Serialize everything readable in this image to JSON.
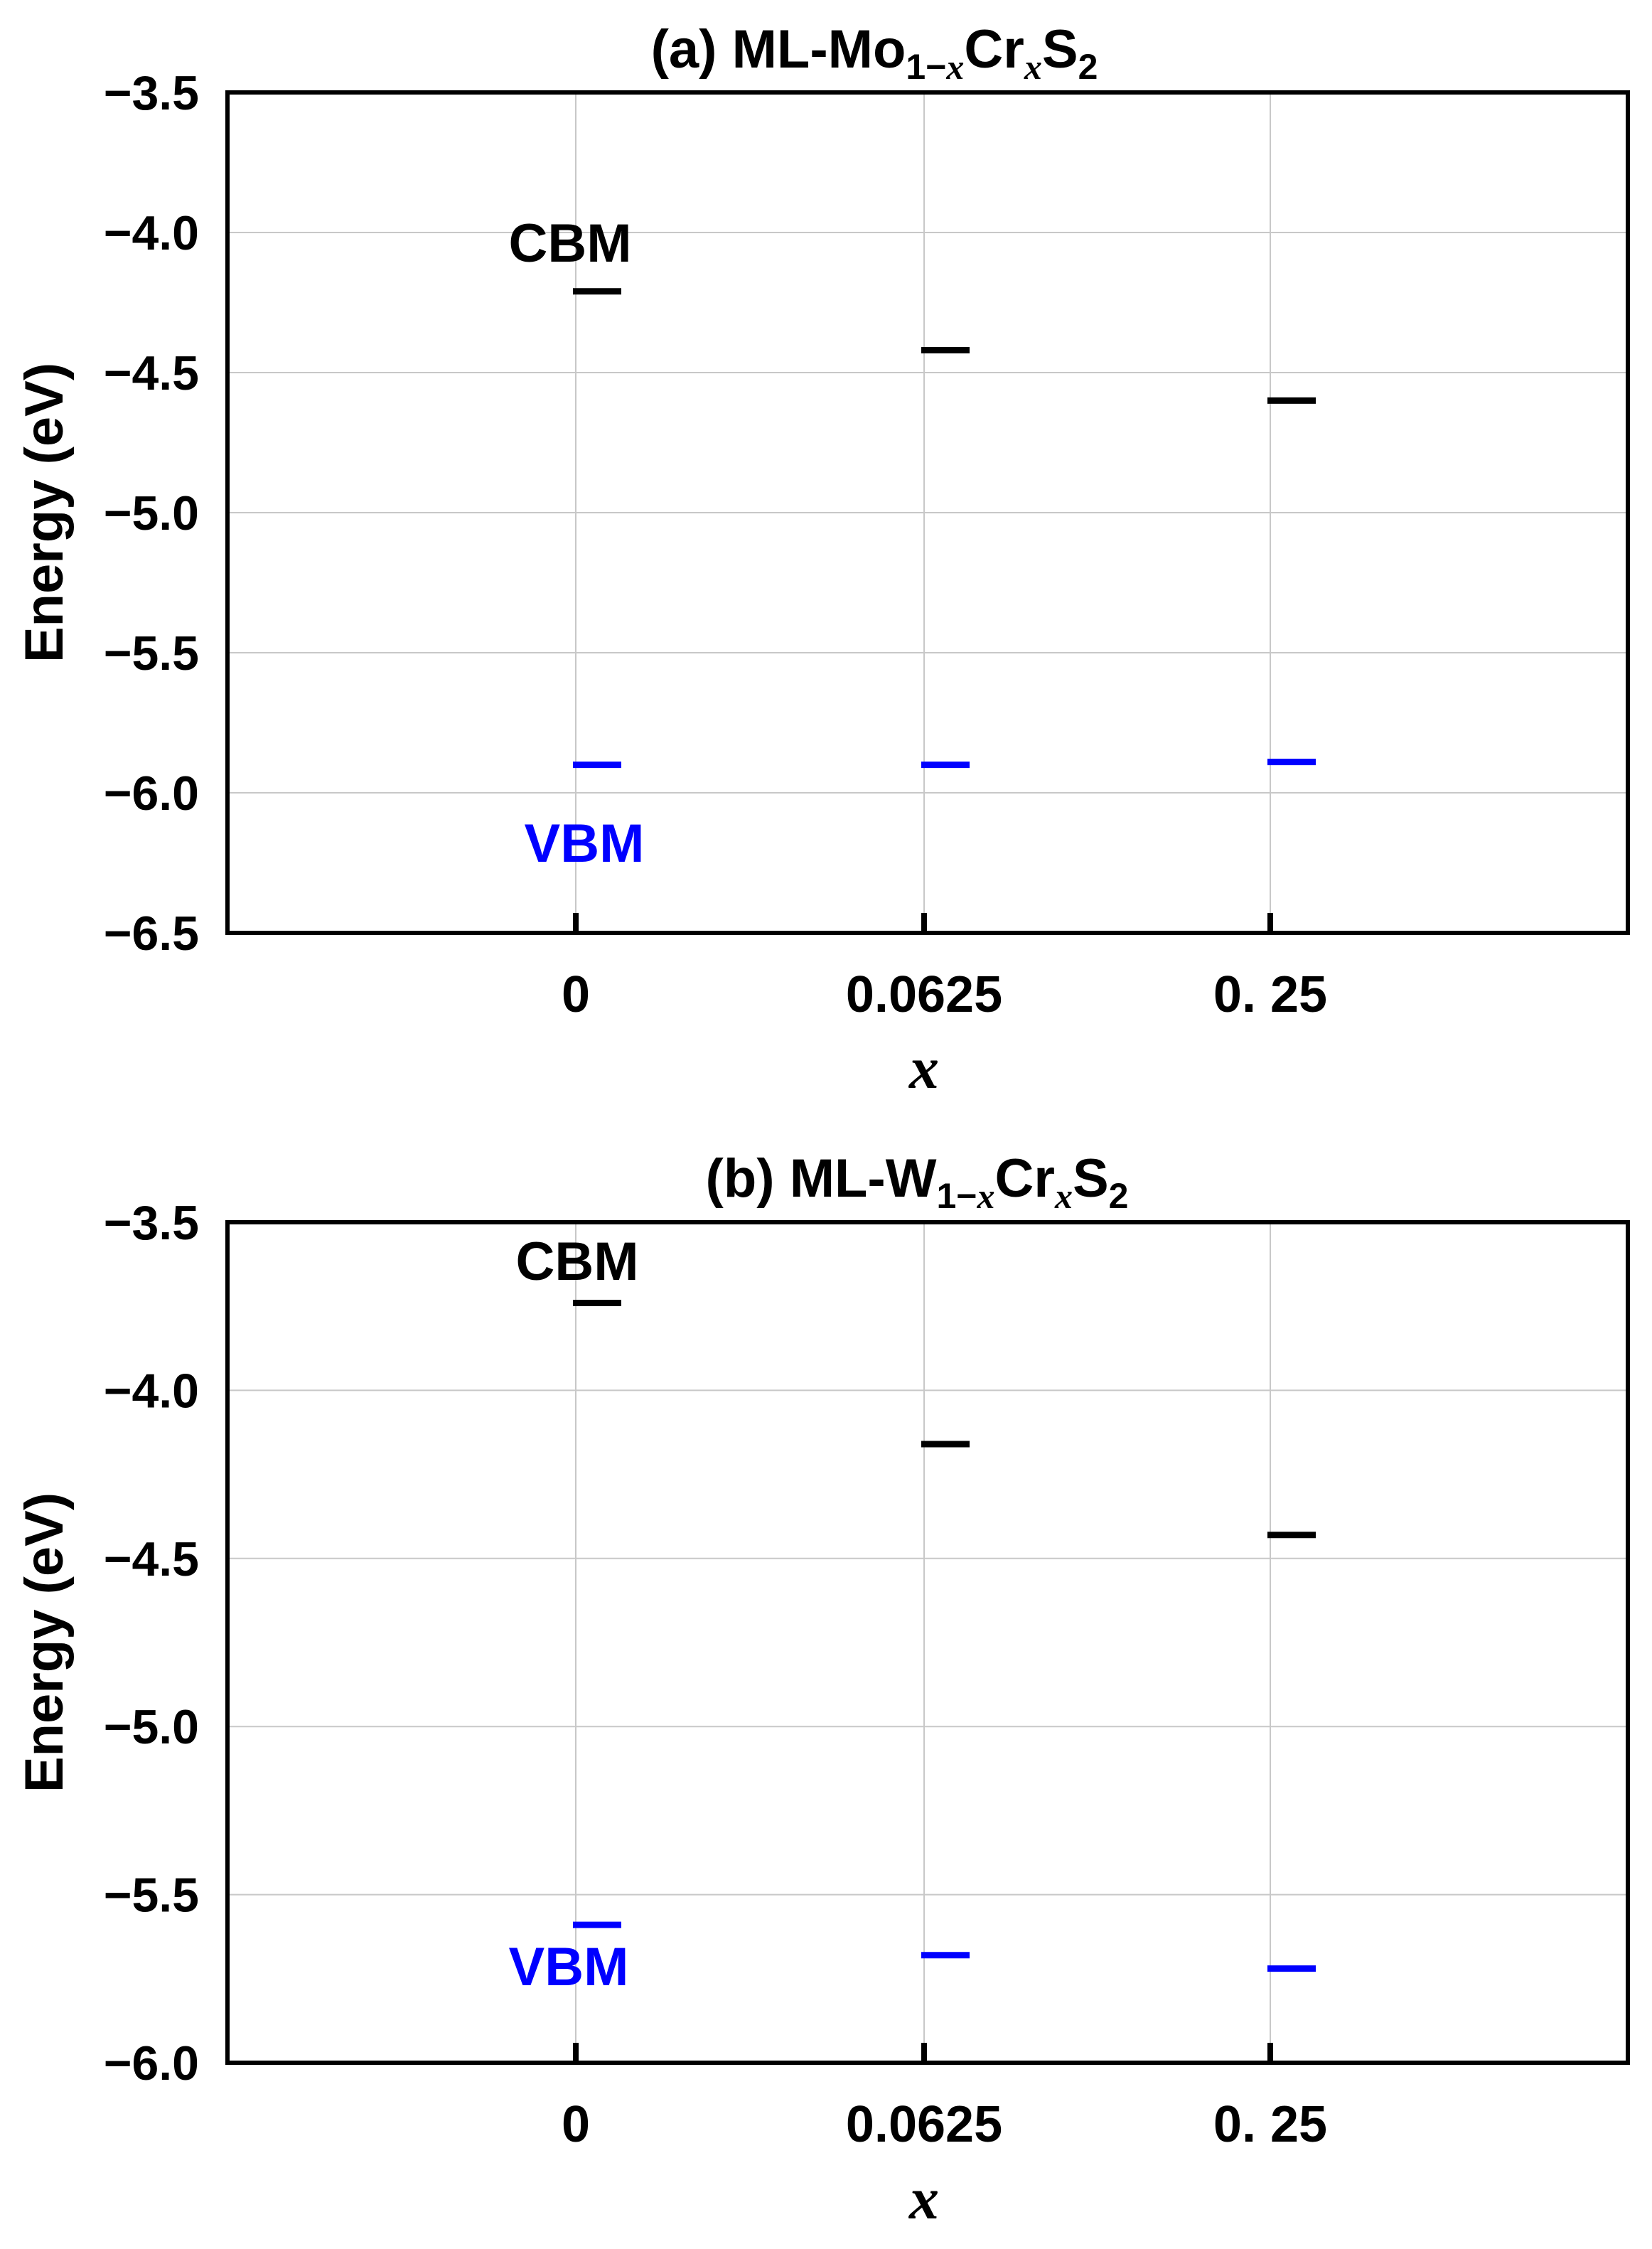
{
  "chart_data": [
    {
      "type": "level-diagram",
      "title": {
        "prefix": "(a) ML-Mo",
        "sub1": "1−",
        "sub1_var": "x",
        "mid": "Cr",
        "sub2": "x",
        "tail": "S",
        "sub3": "2"
      },
      "xlabel": "x",
      "ylabel": "Energy (eV)",
      "categories": [
        "0",
        "0.0625",
        "0. 25"
      ],
      "ylim": [
        -6.5,
        -3.5
      ],
      "yticks": [
        "−3.5",
        "−4.0",
        "−4.5",
        "−5.0",
        "−5.5",
        "−6.0",
        "−6.5"
      ],
      "grid": true,
      "series": [
        {
          "name": "CBM",
          "color": "#000000",
          "values": [
            -4.21,
            -4.42,
            -4.6
          ]
        },
        {
          "name": "VBM",
          "color": "#0000ff",
          "values": [
            -5.9,
            -5.9,
            -5.89
          ]
        }
      ]
    },
    {
      "type": "level-diagram",
      "title": {
        "prefix": "(b) ML-W",
        "sub1": "1−",
        "sub1_var": "x",
        "mid": "Cr",
        "sub2": "x",
        "tail": "S",
        "sub3": "2"
      },
      "xlabel": "x",
      "ylabel": "Energy (eV)",
      "categories": [
        "0",
        "0.0625",
        "0. 25"
      ],
      "ylim": [
        -6.0,
        -3.5
      ],
      "yticks": [
        "−3.5",
        "−4.0",
        "−4.5",
        "−5.0",
        "−5.5",
        "−6.0"
      ],
      "grid": true,
      "series": [
        {
          "name": "CBM",
          "color": "#000000",
          "values": [
            -3.74,
            -4.16,
            -4.43
          ]
        },
        {
          "name": "VBM",
          "color": "#0000ff",
          "values": [
            -5.59,
            -5.68,
            -5.72
          ]
        }
      ]
    }
  ]
}
